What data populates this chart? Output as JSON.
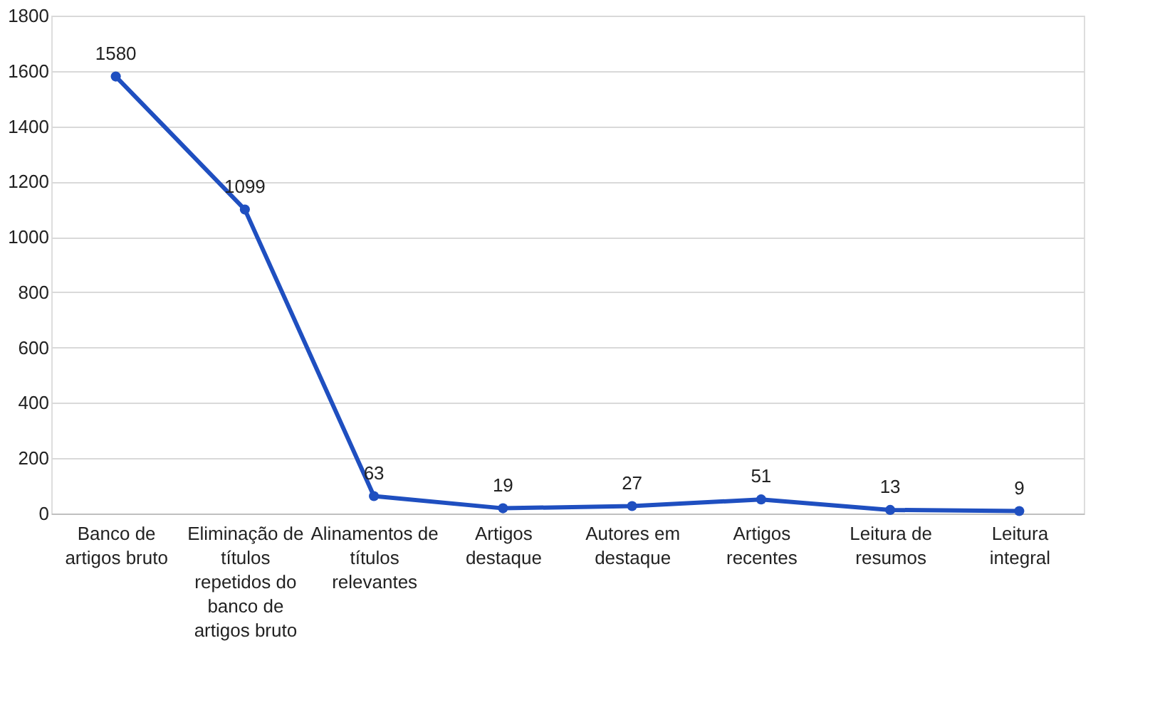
{
  "chart_data": {
    "type": "line",
    "categories": [
      "Banco de artigos bruto",
      "Eliminação de títulos repetidos do banco de artigos bruto",
      "Alinamentos de títulos relevantes",
      "Artigos destaque",
      "Autores em destaque",
      "Artigos recentes",
      "Leitura de resumos",
      "Leitura integral"
    ],
    "values": [
      1580,
      1099,
      63,
      19,
      27,
      51,
      13,
      9
    ],
    "color": "#1f4fc0",
    "ylim": [
      0,
      1800
    ],
    "yticks": [
      0,
      200,
      400,
      600,
      800,
      1000,
      1200,
      1400,
      1600,
      1800
    ],
    "grid": "y",
    "marker": "circle",
    "line_style": "solid",
    "data_labels": true
  }
}
